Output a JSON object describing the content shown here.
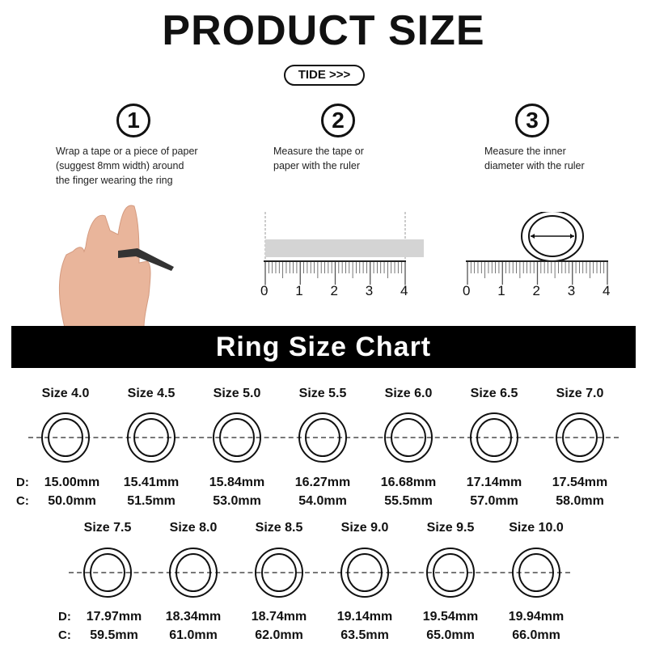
{
  "header": {
    "title": "PRODUCT SIZE",
    "brand": "TIDE >>>"
  },
  "steps": [
    {
      "number": "1",
      "lines": [
        "Wrap a tape or a piece of paper",
        "(suggest 8mm width) around",
        "the finger wearing the ring"
      ]
    },
    {
      "number": "2",
      "lines": [
        "Measure the tape or",
        "paper with the ruler"
      ]
    },
    {
      "number": "3",
      "lines": [
        "Measure the inner",
        "diameter with the ruler"
      ]
    }
  ],
  "ruler_labels": [
    "0",
    "1",
    "2",
    "3",
    "4"
  ],
  "chart": {
    "title": "Ring Size Chart",
    "d_prefix": "D:",
    "c_prefix": "C:",
    "rows": [
      [
        {
          "size": "Size 4.0",
          "d": "15.00mm",
          "c": "50.0mm"
        },
        {
          "size": "Size 4.5",
          "d": "15.41mm",
          "c": "51.5mm"
        },
        {
          "size": "Size 5.0",
          "d": "15.84mm",
          "c": "53.0mm"
        },
        {
          "size": "Size 5.5",
          "d": "16.27mm",
          "c": "54.0mm"
        },
        {
          "size": "Size 6.0",
          "d": "16.68mm",
          "c": "55.5mm"
        },
        {
          "size": "Size 6.5",
          "d": "17.14mm",
          "c": "57.0mm"
        },
        {
          "size": "Size 7.0",
          "d": "17.54mm",
          "c": "58.0mm"
        }
      ],
      [
        {
          "size": "Size 7.5",
          "d": "17.97mm",
          "c": "59.5mm"
        },
        {
          "size": "Size 8.0",
          "d": "18.34mm",
          "c": "61.0mm"
        },
        {
          "size": "Size 8.5",
          "d": "18.74mm",
          "c": "62.0mm"
        },
        {
          "size": "Size 9.0",
          "d": "19.14mm",
          "c": "63.5mm"
        },
        {
          "size": "Size 9.5",
          "d": "19.54mm",
          "c": "65.0mm"
        },
        {
          "size": "Size 10.0",
          "d": "19.94mm",
          "c": "66.0mm"
        }
      ]
    ]
  }
}
